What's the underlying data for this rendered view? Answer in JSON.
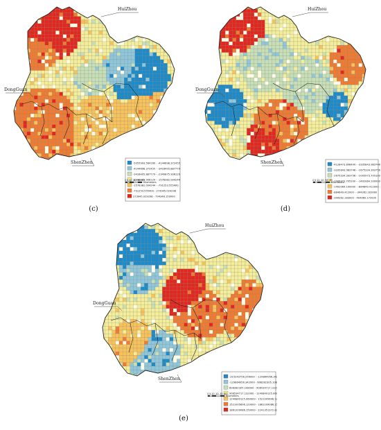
{
  "panels": [
    {
      "id": "c",
      "caption": "(c)",
      "cities": {
        "huizhou": "HuiZhou",
        "dongguan": "DongGuan",
        "shenzhen": "ShenZhen"
      },
      "scale": {
        "ticks": [
          "0",
          "5",
          "10",
          "20",
          "30",
          "40"
        ],
        "unit": "Kilometers"
      },
      "legend": [
        {
          "label": "-5055993.564160 - -4144698.372455",
          "color": "#1e8ac8"
        },
        {
          "label": "-4144698.372455 - -3416405.887779",
          "color": "#8fc6d9"
        },
        {
          "label": "-3416405.887779 - -2349875.906129",
          "color": "#c7dfb6"
        },
        {
          "label": "-2349875.906129 - -1578382.004244",
          "color": "#f4ee9a"
        },
        {
          "label": "-1578382.004244 - -791253.555400",
          "color": "#f8c25a"
        },
        {
          "label": "-791253.555400 - 273945.029298",
          "color": "#ef7b33"
        },
        {
          "label": "273945.029298 - 794348.150000",
          "color": "#e2281e"
        }
      ]
    },
    {
      "id": "d",
      "caption": "(d)",
      "cities": {
        "huizhou": "HuiZhou",
        "dongguan": "DongGuan",
        "shenzhen": "ShenZhen"
      },
      "scale": {
        "ticks": [
          "0",
          "5",
          "10",
          "20",
          "30",
          "40"
        ],
        "unit": "Kilometers"
      },
      "legend": [
        {
          "label": "-4128473.896400 - -3335843.983746",
          "color": "#1e8ac8"
        },
        {
          "label": "-3335843.983746 - -2675334.393756",
          "color": "#8fc6d9"
        },
        {
          "label": "-2675334.393756 - -2005973.705100",
          "color": "#c7dfb6"
        },
        {
          "label": "-2005973.705100 - -1492064.100000",
          "color": "#f4ee9a"
        },
        {
          "label": "-1492064.100000 - -884649.412000",
          "color": "#f8c25a"
        },
        {
          "label": "-884649.412000 - -344262.183000",
          "color": "#ef7b33"
        },
        {
          "label": "-344262.183000 - 404960.172000",
          "color": "#e2281e"
        }
      ]
    },
    {
      "id": "e",
      "caption": "(e)",
      "cities": {
        "huizhou": "HuiZhou",
        "dongguan": "DongGuan",
        "shenzhen": "ShenZhen"
      },
      "scale": {
        "ticks": [
          "0",
          "5",
          "10",
          "20",
          "30",
          "40"
        ],
        "unit": "Kilometers"
      },
      "legend": [
        {
          "label": "-315243756.256000 - -129864956.342000",
          "color": "#1e8ac8"
        },
        {
          "label": "-129864956.342000 - 608282305.108000",
          "color": "#8fc6d9"
        },
        {
          "label": "608282305.108000 - 908534717.132000",
          "color": "#c7dfb6"
        },
        {
          "label": "908534717.132000 - 1240849125.060000",
          "color": "#f4ee9a"
        },
        {
          "label": "1240849125.060000 - 1521005696.120000",
          "color": "#f8c25a"
        },
        {
          "label": "1521005696.120000 - 1861209086.150000",
          "color": "#ef7b33"
        },
        {
          "label": "1861209086.150000 - 2241351372.830000",
          "color": "#e2281e"
        }
      ]
    }
  ]
}
